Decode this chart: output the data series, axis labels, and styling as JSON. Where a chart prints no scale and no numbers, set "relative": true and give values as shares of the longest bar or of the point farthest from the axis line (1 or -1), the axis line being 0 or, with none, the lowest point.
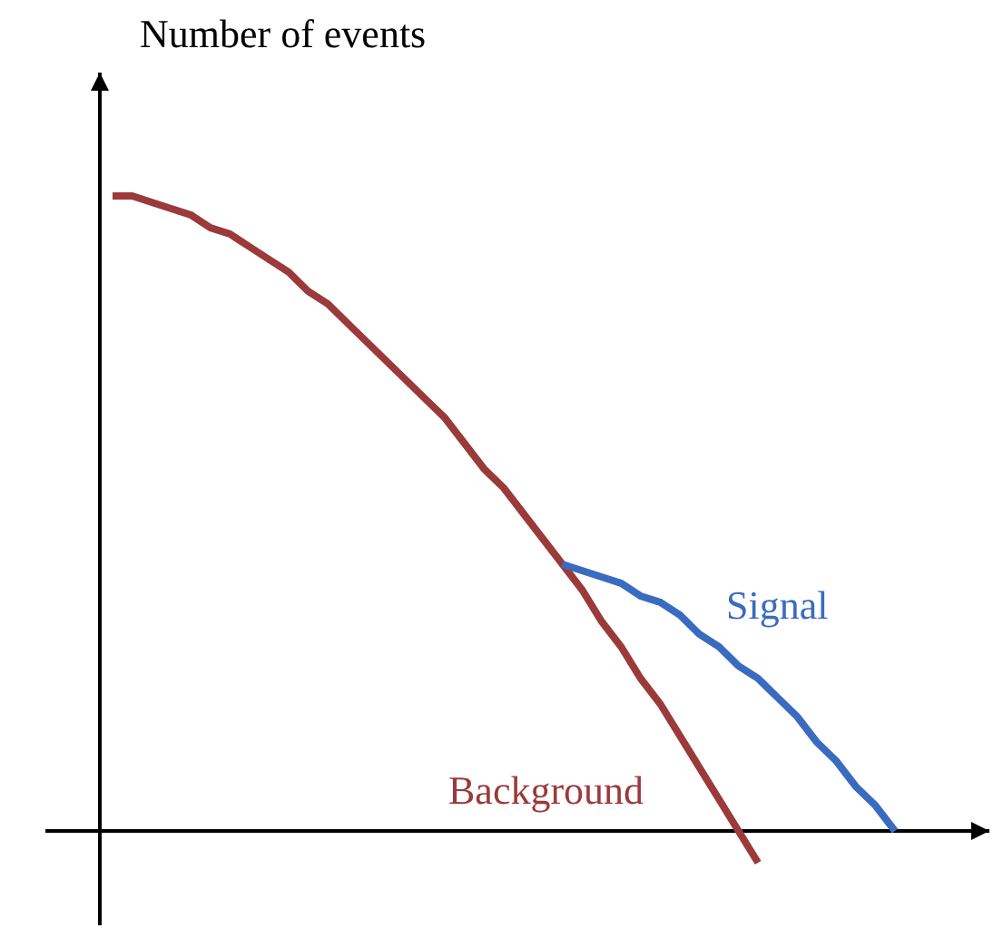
{
  "chart_data": {
    "type": "line",
    "relative": true,
    "ylabel": "Number of events",
    "categories": [
      null,
      null,
      null,
      null,
      null,
      null,
      null,
      null,
      null,
      null,
      null,
      null,
      null,
      null,
      null,
      null,
      null,
      null,
      null,
      null,
      null,
      null,
      null,
      null,
      null,
      null,
      null,
      null,
      null,
      null,
      null,
      null,
      null,
      null,
      null,
      null,
      null,
      null,
      null,
      null,
      null
    ],
    "series": [
      {
        "name": "Background",
        "color": "#9b3a3a",
        "values": [
          1.0,
          1.0,
          0.99,
          0.98,
          0.97,
          0.95,
          0.94,
          0.92,
          0.9,
          0.88,
          0.85,
          0.83,
          0.8,
          0.77,
          0.74,
          0.71,
          0.68,
          0.65,
          0.61,
          0.57,
          0.54,
          0.5,
          0.46,
          0.42,
          0.38,
          0.33,
          0.29,
          0.24,
          0.2,
          0.15,
          0.1,
          0.05,
          0.0,
          -0.05,
          null,
          null,
          null,
          null,
          null,
          null,
          null
        ]
      },
      {
        "name": "Signal",
        "color": "#3a6bc0",
        "values": [
          null,
          null,
          null,
          null,
          null,
          null,
          null,
          null,
          null,
          null,
          null,
          null,
          null,
          null,
          null,
          null,
          null,
          null,
          null,
          null,
          null,
          null,
          null,
          0.42,
          0.41,
          0.4,
          0.39,
          0.37,
          0.36,
          0.34,
          0.31,
          0.29,
          0.26,
          0.24,
          0.21,
          0.18,
          0.14,
          0.11,
          0.07,
          0.04,
          0.0
        ]
      }
    ]
  }
}
